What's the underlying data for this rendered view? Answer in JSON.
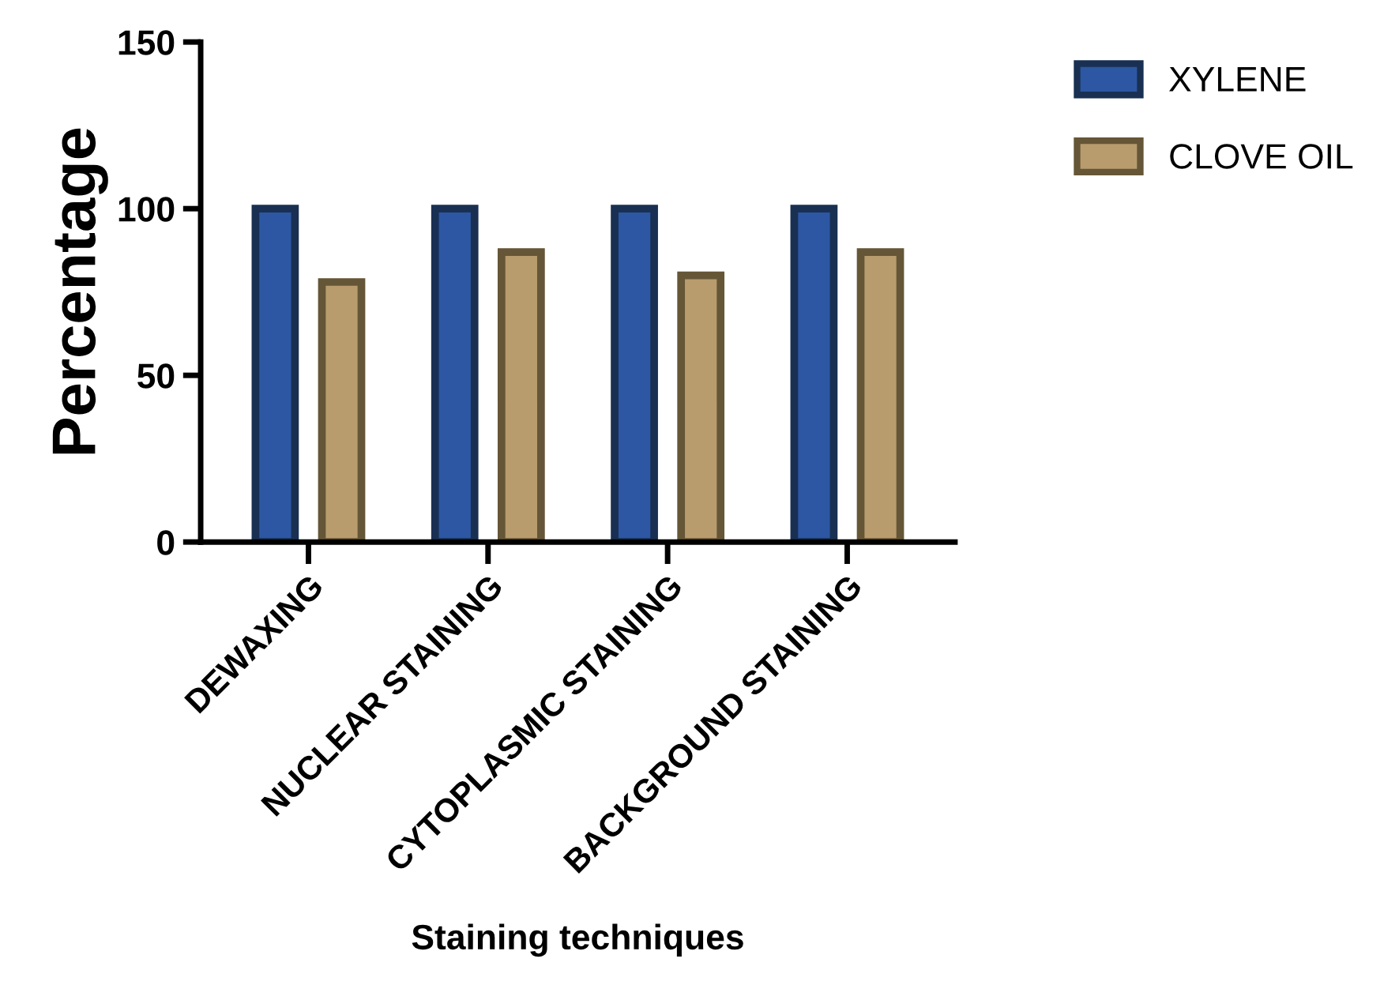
{
  "chart_data": {
    "type": "bar",
    "xlabel": "Staining techniques",
    "ylabel": "Percentage",
    "categories": [
      "DEWAXING",
      "NUCLEAR STAINING",
      "CYTOPLASMIC STAINING",
      "BACKGROUND STAINING"
    ],
    "series": [
      {
        "name": "XYLENE",
        "color": "#2d57a3",
        "values": [
          100,
          100,
          100,
          100
        ]
      },
      {
        "name": "CLOVE OIL",
        "color": "#b89c6e",
        "values": [
          78,
          87,
          80,
          87
        ]
      }
    ],
    "ylim": [
      0,
      150
    ],
    "yticks": [
      0,
      50,
      100,
      150
    ],
    "grid": false,
    "legend": "top right"
  }
}
